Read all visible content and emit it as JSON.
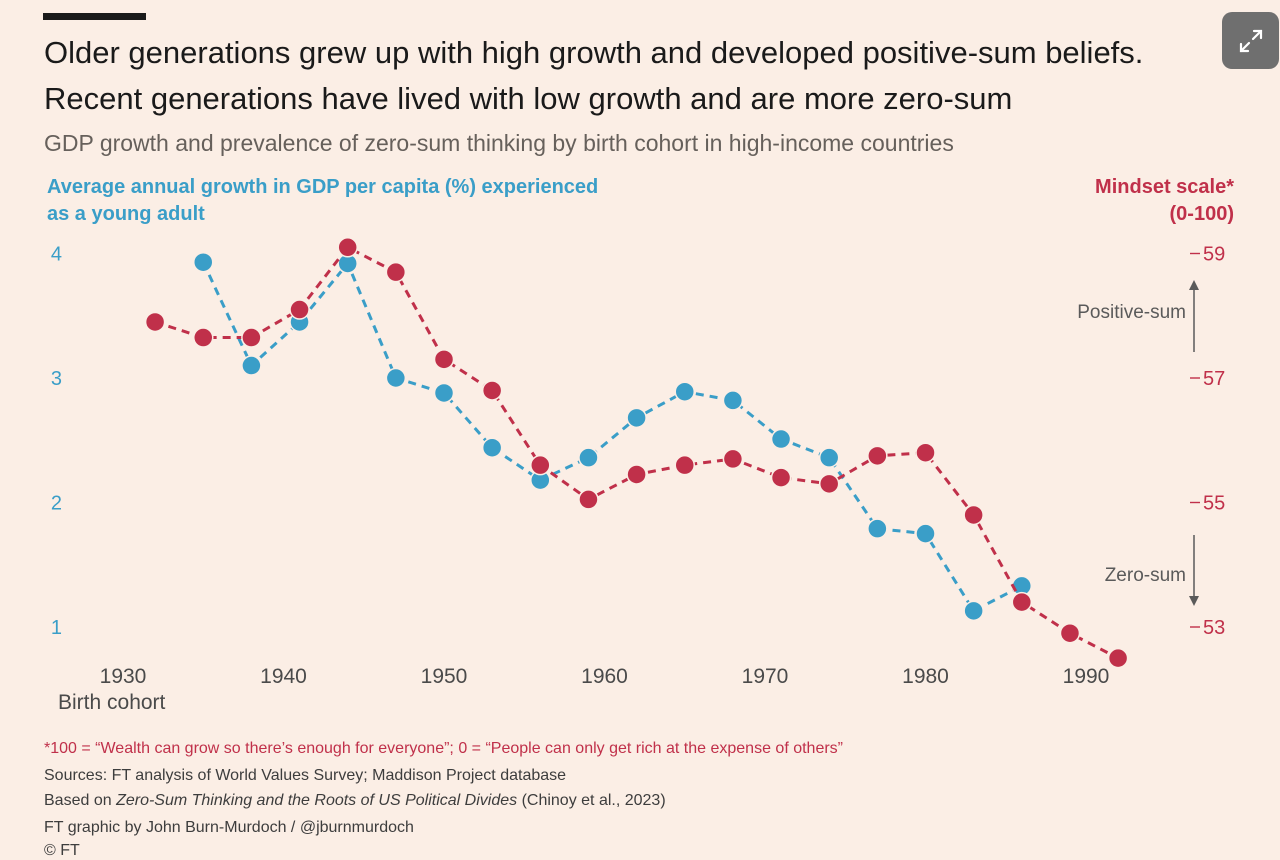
{
  "header": {
    "title": "Older generations grew up with high growth and developed positive-sum beliefs. Recent generations have lived with low growth and are more zero-sum",
    "subtitle": "GDP growth and prevalence of zero-sum thinking by birth cohort in high-income countries"
  },
  "expand_button": {
    "icon": "expand-icon"
  },
  "axes": {
    "left_label": "Average annual growth in GDP per capita (%) experienced as a young adult",
    "right_label_line1": "Mindset scale*",
    "right_label_line2": "(0-100)",
    "x_label": "Birth cohort",
    "arrow_up_label": "Positive-sum",
    "arrow_down_label": "Zero-sum"
  },
  "chart_data": {
    "type": "line",
    "x": {
      "label": "Birth cohort",
      "range": [
        1925,
        1997
      ],
      "ticks": [
        1930,
        1940,
        1950,
        1960,
        1970,
        1980,
        1990
      ]
    },
    "y_left": {
      "label": "Average annual growth in GDP per capita (%) experienced as a young adult",
      "range": [
        0.6,
        4.1
      ],
      "ticks": [
        1,
        2,
        3,
        4
      ]
    },
    "y_right": {
      "label": "Mindset scale* (0-100)",
      "range": [
        52.5,
        59.1
      ],
      "ticks": [
        53,
        55,
        57,
        59
      ]
    },
    "grid": true,
    "series": [
      {
        "name": "Average annual growth in GDP per capita (%)",
        "axis": "left",
        "color": "#3a9ec8",
        "x": [
          1935,
          1938,
          1941,
          1944,
          1947,
          1950,
          1953,
          1956,
          1959,
          1962,
          1965,
          1968,
          1971,
          1974,
          1977,
          1980,
          1983,
          1986
        ],
        "y": [
          3.93,
          3.1,
          3.45,
          3.92,
          3.0,
          2.88,
          2.44,
          2.18,
          2.36,
          2.68,
          2.89,
          2.82,
          2.51,
          2.36,
          1.79,
          1.75,
          1.13,
          1.33
        ]
      },
      {
        "name": "Mindset scale* (0-100)",
        "axis": "right",
        "color": "#c0304a",
        "x": [
          1932,
          1935,
          1938,
          1941,
          1944,
          1947,
          1950,
          1953,
          1956,
          1959,
          1962,
          1965,
          1968,
          1971,
          1974,
          1977,
          1980,
          1983,
          1986,
          1989,
          1992
        ],
        "y": [
          57.9,
          57.65,
          57.65,
          58.1,
          59.1,
          58.7,
          57.3,
          56.8,
          55.6,
          55.05,
          55.45,
          55.6,
          55.7,
          55.4,
          55.3,
          55.75,
          55.8,
          54.8,
          53.4,
          52.9,
          52.5
        ]
      }
    ]
  },
  "footnotes": {
    "definition": "*100 = “Wealth can grow so there’s enough for everyone”; 0 = “People can only get rich at the expense of others”",
    "sources": "Sources: FT analysis of World Values Survey; Maddison Project database",
    "based_on_prefix": "Based on ",
    "based_on_title": "Zero-Sum Thinking and the Roots of US Political Divides",
    "based_on_suffix": " (Chinoy et al., 2023)",
    "credit": "FT graphic by John Burn-Murdoch / @jburnmurdoch",
    "copyright": "© FT"
  }
}
